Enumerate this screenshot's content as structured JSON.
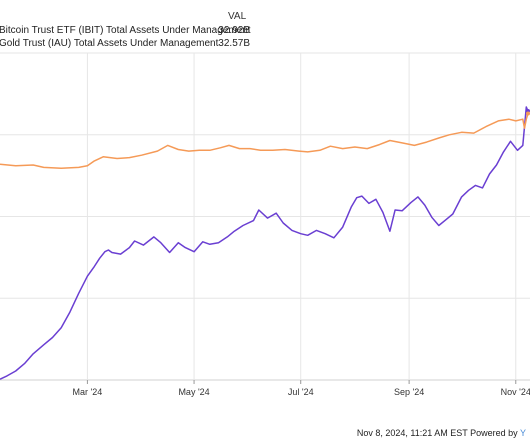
{
  "legend": {
    "header": "VAL",
    "rows": [
      {
        "label": "Bitcoin Trust ETF (IBIT) Total Assets Under Management",
        "value": "32.92B",
        "color": "#6a3fd2"
      },
      {
        "label": "Gold Trust (IAU) Total Assets Under Management",
        "value": "32.57B",
        "color": "#f59a57"
      }
    ]
  },
  "footer": {
    "text": "Nov 8, 2024, 11:21 AM EST Powered by",
    "brand": "Y"
  },
  "chart_data": {
    "type": "line",
    "x_range": [
      "2024-01-11",
      "2024-11-08"
    ],
    "y_range": [
      0,
      40
    ],
    "y_unit": "billion USD",
    "grid": true,
    "x_ticks": [
      {
        "label": "Mar '24",
        "date": "2024-03-01"
      },
      {
        "label": "May '24",
        "date": "2024-05-01"
      },
      {
        "label": "Jul '24",
        "date": "2024-07-01"
      },
      {
        "label": "Sep '24",
        "date": "2024-09-01"
      },
      {
        "label": "Nov '24",
        "date": "2024-11-01"
      }
    ],
    "y_gridlines": [
      10,
      20,
      30
    ],
    "series": [
      {
        "name": "Bitcoin Trust ETF (IBIT) Total Assets Under Management",
        "color": "#6a3fd2",
        "points": [
          [
            "2024-01-11",
            0.1
          ],
          [
            "2024-01-15",
            0.5
          ],
          [
            "2024-01-20",
            1.1
          ],
          [
            "2024-01-25",
            2.0
          ],
          [
            "2024-01-30",
            3.2
          ],
          [
            "2024-02-05",
            4.3
          ],
          [
            "2024-02-10",
            5.2
          ],
          [
            "2024-02-15",
            6.4
          ],
          [
            "2024-02-20",
            8.3
          ],
          [
            "2024-02-25",
            10.6
          ],
          [
            "2024-03-01",
            12.7
          ],
          [
            "2024-03-05",
            13.9
          ],
          [
            "2024-03-08",
            14.9
          ],
          [
            "2024-03-11",
            15.7
          ],
          [
            "2024-03-13",
            15.9
          ],
          [
            "2024-03-15",
            15.6
          ],
          [
            "2024-03-20",
            15.4
          ],
          [
            "2024-03-25",
            16.2
          ],
          [
            "2024-03-28",
            17.0
          ],
          [
            "2024-04-02",
            16.5
          ],
          [
            "2024-04-08",
            17.5
          ],
          [
            "2024-04-12",
            16.8
          ],
          [
            "2024-04-17",
            15.6
          ],
          [
            "2024-04-22",
            16.8
          ],
          [
            "2024-04-26",
            16.2
          ],
          [
            "2024-05-01",
            15.7
          ],
          [
            "2024-05-06",
            16.9
          ],
          [
            "2024-05-10",
            16.6
          ],
          [
            "2024-05-15",
            16.8
          ],
          [
            "2024-05-20",
            17.5
          ],
          [
            "2024-05-24",
            18.2
          ],
          [
            "2024-05-29",
            18.9
          ],
          [
            "2024-06-04",
            19.5
          ],
          [
            "2024-06-07",
            20.8
          ],
          [
            "2024-06-12",
            19.8
          ],
          [
            "2024-06-17",
            20.4
          ],
          [
            "2024-06-21",
            19.2
          ],
          [
            "2024-06-26",
            18.3
          ],
          [
            "2024-07-01",
            17.9
          ],
          [
            "2024-07-05",
            17.7
          ],
          [
            "2024-07-10",
            18.3
          ],
          [
            "2024-07-15",
            17.9
          ],
          [
            "2024-07-20",
            17.4
          ],
          [
            "2024-07-25",
            18.7
          ],
          [
            "2024-07-30",
            21.2
          ],
          [
            "2024-08-02",
            22.3
          ],
          [
            "2024-08-05",
            22.5
          ],
          [
            "2024-08-09",
            21.6
          ],
          [
            "2024-08-13",
            22.1
          ],
          [
            "2024-08-17",
            20.5
          ],
          [
            "2024-08-21",
            18.2
          ],
          [
            "2024-08-24",
            20.8
          ],
          [
            "2024-08-28",
            20.7
          ],
          [
            "2024-09-02",
            21.7
          ],
          [
            "2024-09-06",
            22.4
          ],
          [
            "2024-09-10",
            21.4
          ],
          [
            "2024-09-14",
            19.9
          ],
          [
            "2024-09-18",
            18.9
          ],
          [
            "2024-09-22",
            19.6
          ],
          [
            "2024-09-26",
            20.3
          ],
          [
            "2024-10-01",
            22.4
          ],
          [
            "2024-10-05",
            23.2
          ],
          [
            "2024-10-09",
            23.8
          ],
          [
            "2024-10-13",
            23.5
          ],
          [
            "2024-10-17",
            25.2
          ],
          [
            "2024-10-21",
            26.3
          ],
          [
            "2024-10-25",
            27.9
          ],
          [
            "2024-10-29",
            29.2
          ],
          [
            "2024-11-02",
            28.1
          ],
          [
            "2024-11-05",
            28.7
          ],
          [
            "2024-11-07",
            33.4
          ],
          [
            "2024-11-08",
            32.9
          ]
        ]
      },
      {
        "name": "Gold Trust (IAU) Total Assets Under Management",
        "color": "#f59a57",
        "points": [
          [
            "2024-01-11",
            26.4
          ],
          [
            "2024-01-20",
            26.2
          ],
          [
            "2024-01-30",
            26.3
          ],
          [
            "2024-02-05",
            26.0
          ],
          [
            "2024-02-15",
            25.9
          ],
          [
            "2024-02-25",
            26.0
          ],
          [
            "2024-03-01",
            26.2
          ],
          [
            "2024-03-05",
            26.8
          ],
          [
            "2024-03-10",
            27.3
          ],
          [
            "2024-03-18",
            27.1
          ],
          [
            "2024-03-25",
            27.2
          ],
          [
            "2024-04-01",
            27.5
          ],
          [
            "2024-04-10",
            28.0
          ],
          [
            "2024-04-16",
            28.7
          ],
          [
            "2024-04-22",
            28.2
          ],
          [
            "2024-04-28",
            28.0
          ],
          [
            "2024-05-04",
            28.1
          ],
          [
            "2024-05-10",
            28.1
          ],
          [
            "2024-05-16",
            28.4
          ],
          [
            "2024-05-21",
            28.7
          ],
          [
            "2024-05-27",
            28.3
          ],
          [
            "2024-06-02",
            28.3
          ],
          [
            "2024-06-08",
            28.1
          ],
          [
            "2024-06-15",
            28.1
          ],
          [
            "2024-06-22",
            28.2
          ],
          [
            "2024-06-30",
            28.0
          ],
          [
            "2024-07-05",
            27.9
          ],
          [
            "2024-07-12",
            28.1
          ],
          [
            "2024-07-18",
            28.6
          ],
          [
            "2024-07-25",
            28.3
          ],
          [
            "2024-08-01",
            28.5
          ],
          [
            "2024-08-08",
            28.3
          ],
          [
            "2024-08-15",
            28.8
          ],
          [
            "2024-08-21",
            29.3
          ],
          [
            "2024-08-28",
            29.0
          ],
          [
            "2024-09-04",
            28.7
          ],
          [
            "2024-09-11",
            29.1
          ],
          [
            "2024-09-18",
            29.6
          ],
          [
            "2024-09-24",
            30.0
          ],
          [
            "2024-10-01",
            30.3
          ],
          [
            "2024-10-08",
            30.2
          ],
          [
            "2024-10-15",
            31.0
          ],
          [
            "2024-10-22",
            31.7
          ],
          [
            "2024-10-28",
            31.9
          ],
          [
            "2024-11-01",
            31.7
          ],
          [
            "2024-11-05",
            31.9
          ],
          [
            "2024-11-06",
            30.8
          ],
          [
            "2024-11-07",
            31.9
          ],
          [
            "2024-11-08",
            32.6
          ]
        ]
      }
    ]
  }
}
